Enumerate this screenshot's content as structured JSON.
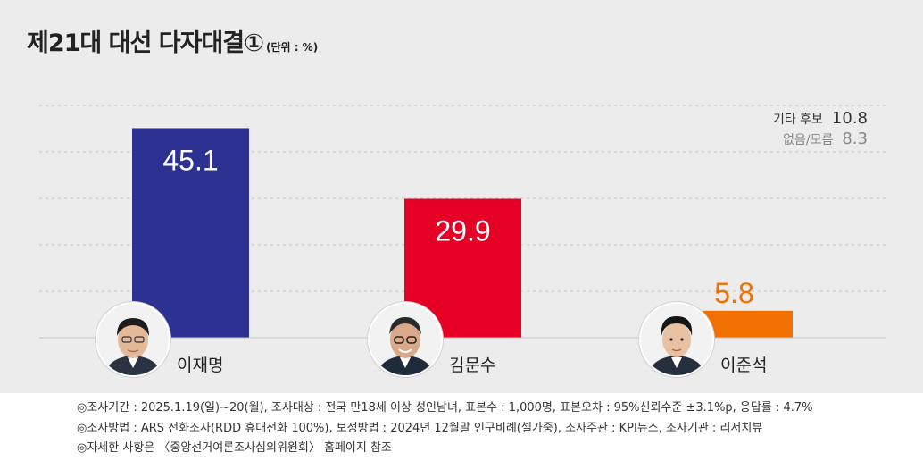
{
  "title": "제21대 대선 다자대결①",
  "unit": "(단위 : %)",
  "others": [
    {
      "label": "기타 후보",
      "value": "10.8"
    },
    {
      "label": "없음/모름",
      "value": "8.3"
    }
  ],
  "colors": {
    "lee": "#2d3192",
    "kim": "#e60026",
    "lee_jun": "#f07100",
    "background": "#ececec"
  },
  "chart_data": {
    "type": "bar",
    "categories": [
      "이재명",
      "김문수",
      "이준석"
    ],
    "values": [
      45.1,
      29.9,
      5.8
    ],
    "value_labels": [
      "45.1",
      "29.9",
      "5.8"
    ],
    "title": "제21대 대선 다자대결①",
    "ylabel": "",
    "ylim": [
      0,
      50
    ],
    "grid": true
  },
  "footer": [
    "◎조사기간 : 2025.1.19(일)~20(월), 조사대상 : 전국 만18세 이상 성인남녀, 표본수 : 1,000명, 표본오차 : 95%신뢰수준 ±3.1%p, 응답률 : 4.7%",
    "◎조사방법 : ARS 전화조사(RDD 휴대전화 100%), 보정방법 : 2024년 12월말 인구비례(셀가중), 조사주관 : KPI뉴스, 조사기관 : 리서치뷰",
    "◎자세한 사항은 〈중앙선거여론조사심의위원회〉 홈페이지 참조"
  ]
}
